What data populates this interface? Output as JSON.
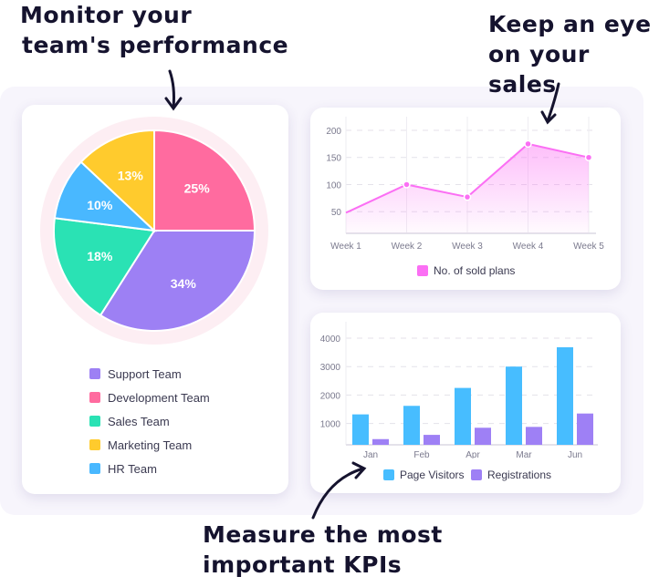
{
  "annotations": {
    "top_left": [
      "Monitor your",
      "team's performance"
    ],
    "top_right": [
      "Keep an eye",
      "on your sales"
    ],
    "bottom": [
      "Measure the most",
      "important KPIs"
    ]
  },
  "chart_data": [
    {
      "type": "pie",
      "labels": [
        "Development Team",
        "Support Team",
        "Sales Team",
        "HR Team",
        "Marketing Team"
      ],
      "values": [
        25,
        34,
        18,
        10,
        13
      ],
      "value_labels": [
        "25%",
        "34%",
        "18%",
        "10%",
        "13%"
      ],
      "colors": [
        "#ff6b9f",
        "#9d80f4",
        "#2ae2b4",
        "#49b8ff",
        "#ffcb2d"
      ],
      "legend": [
        {
          "label": "Support Team",
          "color": "#9d80f4"
        },
        {
          "label": "Development Team",
          "color": "#ff6b9f"
        },
        {
          "label": "Sales Team",
          "color": "#2ae2b4"
        },
        {
          "label": "Marketing Team",
          "color": "#ffcb2d"
        },
        {
          "label": "HR Team",
          "color": "#49b8ff"
        }
      ],
      "legend_position": "bottom"
    },
    {
      "type": "area",
      "categories": [
        "Week 1",
        "Week 2",
        "Week 3",
        "Week 4",
        "Week 5"
      ],
      "series": [
        {
          "name": "No. of sold plans",
          "values": [
            48,
            100,
            77,
            175,
            150
          ],
          "color": "#fb6ff4"
        }
      ],
      "yticks": [
        50,
        100,
        150,
        200
      ],
      "ylim": [
        10,
        220
      ],
      "grid": true,
      "legend_position": "bottom"
    },
    {
      "type": "bar",
      "categories": [
        "Jan",
        "Feb",
        "Apr",
        "Mar",
        "Jun"
      ],
      "series": [
        {
          "name": "Page Visitors",
          "values": [
            1320,
            1620,
            2250,
            3000,
            3680
          ],
          "color": "#47bdff"
        },
        {
          "name": "Registrations",
          "values": [
            450,
            600,
            850,
            880,
            1350
          ],
          "color": "#9e80f5"
        }
      ],
      "yticks": [
        1000,
        2000,
        3000,
        4000
      ],
      "ylim": [
        250,
        4300
      ],
      "grid": true,
      "legend_position": "bottom"
    }
  ]
}
